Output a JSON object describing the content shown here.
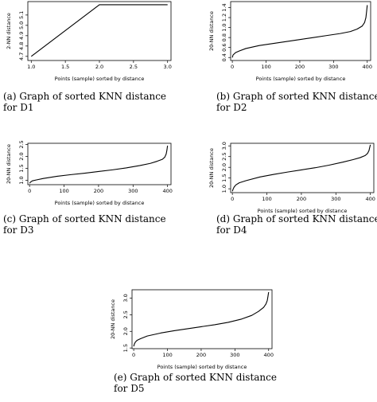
{
  "panels": [
    {
      "id": "a",
      "caption_line1": "(a)  Graph  of  sorted  KNN  distance",
      "caption_line2": "for  D1",
      "chart_data": {
        "type": "line",
        "xlabel": "Points (sample) sorted by distance",
        "ylabel": "2-NN distance",
        "xlim": [
          0.95,
          3.05
        ],
        "ylim": [
          4.66,
          5.23
        ],
        "xticks": [
          1.0,
          1.5,
          2.0,
          2.5,
          3.0
        ],
        "xtick_labels": [
          "1.0",
          "1.5",
          "2.0",
          "2.5",
          "3.0"
        ],
        "yticks": [
          4.7,
          4.8,
          4.9,
          5.0,
          5.1
        ],
        "ytick_labels": [
          "4.7",
          "4.8",
          "4.9",
          "5.0",
          "5.1"
        ],
        "x": [
          1.0,
          2.0,
          3.0
        ],
        "y": [
          4.7,
          5.2,
          5.2
        ]
      }
    },
    {
      "id": "b",
      "caption_line1": "(b)  Graph  of  sorted  KNN  distance",
      "caption_line2": "for  D2",
      "chart_data": {
        "type": "line",
        "xlabel": "Points (sample) sorted by distance",
        "ylabel": "20-NN distance",
        "xlim": [
          -5,
          410
        ],
        "ylim": [
          0.34,
          1.52
        ],
        "xticks": [
          0,
          100,
          200,
          300,
          400
        ],
        "xtick_labels": [
          "0",
          "100",
          "200",
          "300",
          "400"
        ],
        "yticks": [
          0.4,
          0.6,
          0.8,
          1.0,
          1.2,
          1.4
        ],
        "ytick_labels": [
          "0.4",
          "0.6",
          "0.8",
          "1.0",
          "1.2",
          "1.4"
        ],
        "x": [
          0,
          2,
          5,
          10,
          20,
          40,
          80,
          120,
          160,
          200,
          240,
          280,
          320,
          350,
          370,
          385,
          392,
          396,
          398,
          400
        ],
        "y": [
          0.4,
          0.45,
          0.47,
          0.5,
          0.53,
          0.58,
          0.64,
          0.68,
          0.72,
          0.76,
          0.8,
          0.84,
          0.88,
          0.92,
          0.97,
          1.03,
          1.1,
          1.2,
          1.32,
          1.45
        ]
      }
    },
    {
      "id": "c",
      "caption_line1": "(c)  Graph  of  sorted  KNN  distance",
      "caption_line2": "for  D3",
      "chart_data": {
        "type": "line",
        "xlabel": "Points (sample) sorted by distance",
        "ylabel": "20-NN distance",
        "xlim": [
          -5,
          410
        ],
        "ylim": [
          0.82,
          2.55
        ],
        "xticks": [
          0,
          100,
          200,
          300,
          400
        ],
        "xtick_labels": [
          "0",
          "100",
          "200",
          "300",
          "400"
        ],
        "yticks": [
          1.0,
          1.5,
          2.0,
          2.5
        ],
        "ytick_labels": [
          "1.0",
          "1.5",
          "2.0",
          "2.5"
        ],
        "x": [
          0,
          3,
          8,
          20,
          40,
          80,
          120,
          160,
          200,
          240,
          280,
          320,
          350,
          370,
          385,
          392,
          396,
          398,
          400
        ],
        "y": [
          0.88,
          0.93,
          0.98,
          1.02,
          1.08,
          1.17,
          1.24,
          1.3,
          1.37,
          1.44,
          1.52,
          1.62,
          1.71,
          1.8,
          1.88,
          1.97,
          2.1,
          2.25,
          2.45
        ]
      }
    },
    {
      "id": "d",
      "caption_line1": "(d)  Graph  of  sorted  KNN  distance",
      "caption_line2": "for  D4",
      "chart_data": {
        "type": "line",
        "xlabel": "Points (sample) sorted by distance",
        "ylabel": "20-NN distance",
        "xlim": [
          -5,
          410
        ],
        "ylim": [
          0.82,
          3.12
        ],
        "xticks": [
          0,
          100,
          200,
          300,
          400
        ],
        "xtick_labels": [
          "0",
          "100",
          "200",
          "300",
          "400"
        ],
        "yticks": [
          1.0,
          1.5,
          2.0,
          2.5,
          3.0
        ],
        "ytick_labels": [
          "1.0",
          "1.5",
          "2.0",
          "2.5",
          "3.0"
        ],
        "x": [
          0,
          2,
          5,
          10,
          20,
          40,
          80,
          120,
          160,
          200,
          240,
          280,
          320,
          350,
          370,
          385,
          392,
          396,
          398,
          400
        ],
        "y": [
          0.88,
          0.98,
          1.08,
          1.18,
          1.28,
          1.38,
          1.55,
          1.67,
          1.78,
          1.88,
          1.98,
          2.1,
          2.24,
          2.36,
          2.45,
          2.55,
          2.65,
          2.78,
          2.92,
          3.05
        ]
      }
    },
    {
      "id": "e",
      "caption_line1": "(e)  Graph  of  sorted  KNN  distance",
      "caption_line2": "for  D5",
      "chart_data": {
        "type": "line",
        "xlabel": "Points (sample) sorted by distance",
        "ylabel": "20-NN distance",
        "xlim": [
          -5,
          410
        ],
        "ylim": [
          1.48,
          3.25
        ],
        "xticks": [
          0,
          100,
          200,
          300,
          400
        ],
        "xtick_labels": [
          "0",
          "100",
          "200",
          "300",
          "400"
        ],
        "yticks": [
          1.5,
          2.0,
          2.5,
          3.0
        ],
        "ytick_labels": [
          "1.5",
          "2.0",
          "2.5",
          "3.0"
        ],
        "x": [
          0,
          2,
          5,
          10,
          20,
          40,
          80,
          120,
          160,
          200,
          240,
          280,
          320,
          350,
          370,
          385,
          392,
          396,
          398,
          400
        ],
        "y": [
          1.55,
          1.62,
          1.68,
          1.73,
          1.78,
          1.86,
          1.95,
          2.02,
          2.08,
          2.14,
          2.2,
          2.27,
          2.37,
          2.48,
          2.6,
          2.72,
          2.82,
          2.93,
          3.05,
          3.18
        ]
      }
    }
  ]
}
